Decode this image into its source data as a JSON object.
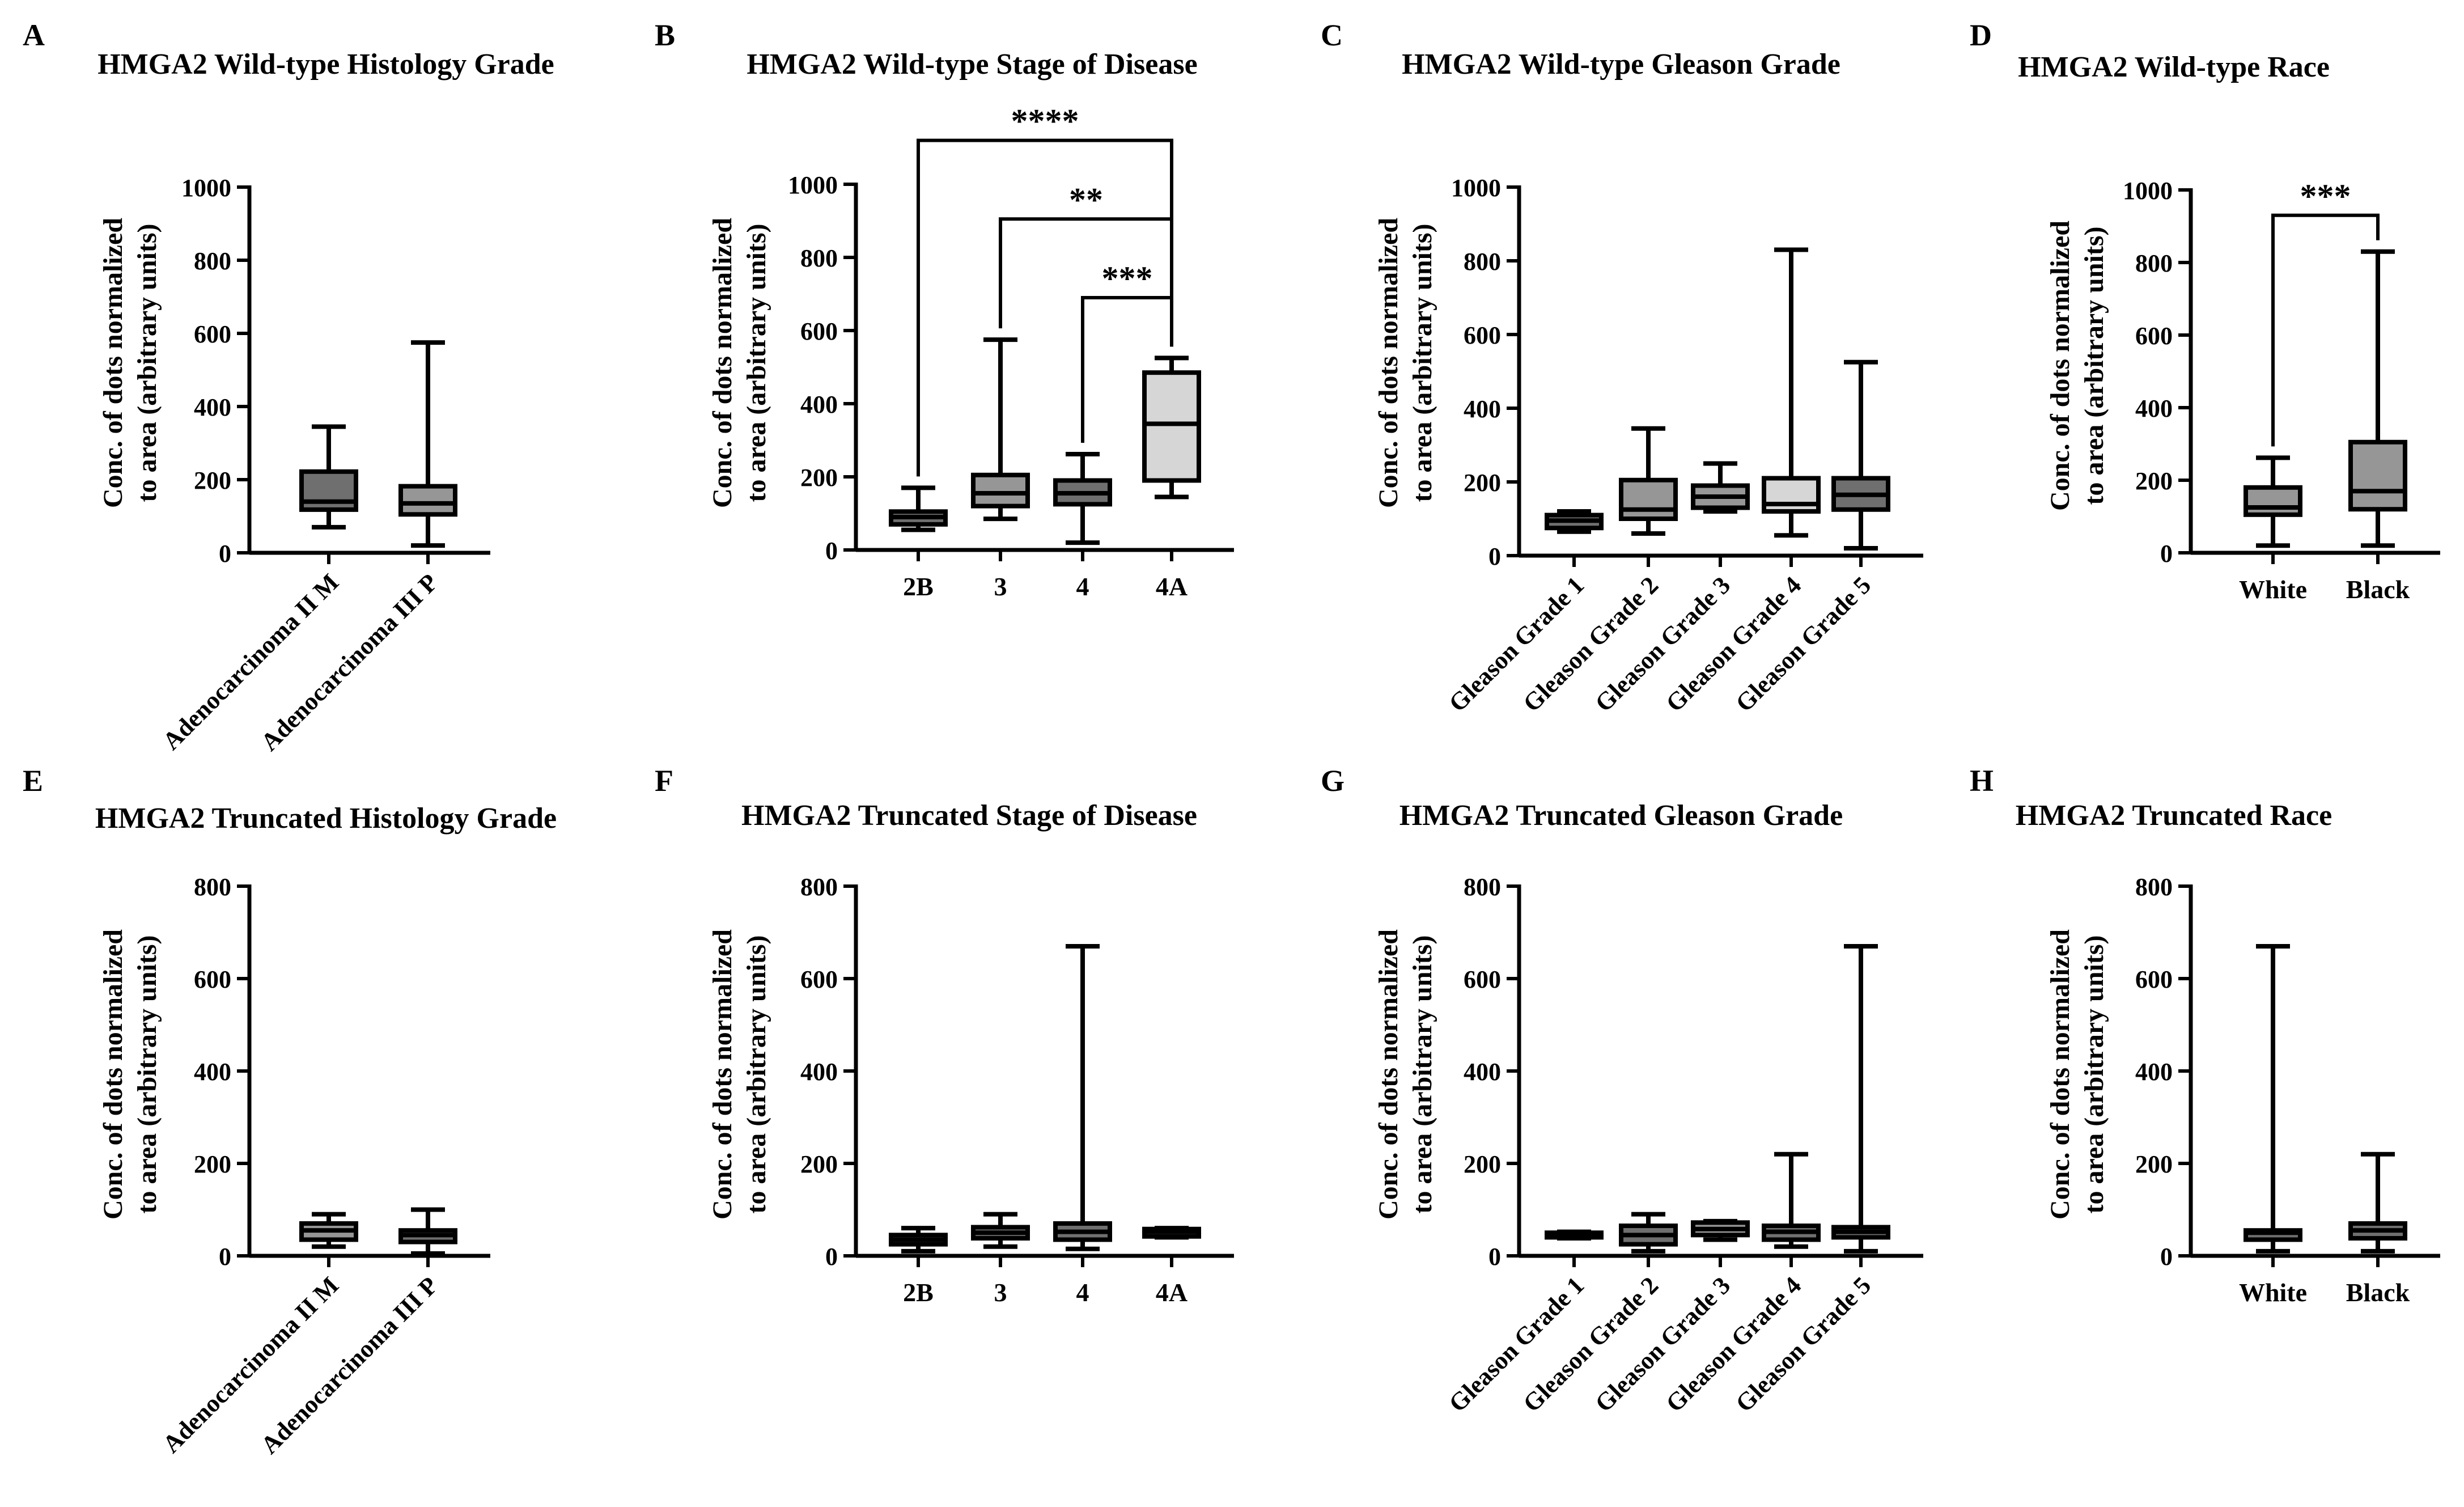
{
  "colors": {
    "dark": "#6f6f6f",
    "mid": "#969696",
    "light": "#d6d6d6"
  },
  "chart_data": [
    {
      "panel": "A",
      "type": "box",
      "title": "HMGA2 Wild-type Histology Grade",
      "ylabel": [
        "Conc. of dots normalized",
        "to area (arbitrary units)"
      ],
      "ylim": [
        0,
        1000
      ],
      "yticks": [
        "0",
        "200",
        "400",
        "600",
        "800",
        "1000"
      ],
      "categories": [
        "Adenocarcinoma II M",
        "Adenocarcinoma III P"
      ],
      "boxes": [
        {
          "min": 70,
          "q1": 118,
          "median": 140,
          "q3": 222,
          "max": 345,
          "fill": "dark"
        },
        {
          "min": 20,
          "q1": 105,
          "median": 135,
          "q3": 182,
          "max": 575,
          "fill": "mid"
        }
      ],
      "significance": []
    },
    {
      "panel": "B",
      "type": "box",
      "title": "HMGA2 Wild-type Stage of Disease",
      "ylabel": [
        "Conc. of dots normalized",
        "to area (arbitrary units)"
      ],
      "ylim": [
        0,
        1000
      ],
      "yticks": [
        "0",
        "200",
        "400",
        "600",
        "800",
        "1000"
      ],
      "categories": [
        "2B",
        "3",
        "4",
        "4A"
      ],
      "boxes": [
        {
          "min": 55,
          "q1": 70,
          "median": 90,
          "q3": 105,
          "max": 170,
          "fill": "dark"
        },
        {
          "min": 85,
          "q1": 120,
          "median": 155,
          "q3": 205,
          "max": 575,
          "fill": "mid"
        },
        {
          "min": 20,
          "q1": 125,
          "median": 155,
          "q3": 190,
          "max": 262,
          "fill": "dark"
        },
        {
          "min": 145,
          "q1": 190,
          "median": 345,
          "q3": 485,
          "max": 525,
          "fill": "light"
        }
      ],
      "significance": [
        {
          "from": 2,
          "to": 3,
          "label": "***",
          "y": 690
        },
        {
          "from": 1,
          "to": 3,
          "label": "**",
          "y": 905
        },
        {
          "from": 0,
          "to": 3,
          "label": "****",
          "y": 1120
        }
      ]
    },
    {
      "panel": "C",
      "type": "box",
      "title": "HMGA2 Wild-type Gleason Grade",
      "ylabel": [
        "Conc. of dots normalized",
        "to area (arbitrary units)"
      ],
      "ylim": [
        0,
        1000
      ],
      "yticks": [
        "0",
        "200",
        "400",
        "600",
        "800",
        "1000"
      ],
      "categories": [
        "Gleason Grade 1",
        "Gleason Grade 2",
        "Gleason Grade 3",
        "Gleason Grade 4",
        "Gleason Grade 5"
      ],
      "boxes": [
        {
          "min": 65,
          "q1": 75,
          "median": 95,
          "q3": 110,
          "max": 120,
          "fill": "dark"
        },
        {
          "min": 60,
          "q1": 100,
          "median": 125,
          "q3": 205,
          "max": 345,
          "fill": "mid"
        },
        {
          "min": 120,
          "q1": 130,
          "median": 160,
          "q3": 190,
          "max": 250,
          "fill": "mid"
        },
        {
          "min": 55,
          "q1": 120,
          "median": 140,
          "q3": 210,
          "max": 830,
          "fill": "light"
        },
        {
          "min": 20,
          "q1": 125,
          "median": 165,
          "q3": 210,
          "max": 525,
          "fill": "dark"
        }
      ],
      "significance": []
    },
    {
      "panel": "D",
      "type": "box",
      "title": "HMGA2 Wild-type Race",
      "ylabel": [
        "Conc. of dots normalized",
        "to area (arbitrary units)"
      ],
      "ylim": [
        0,
        1000
      ],
      "yticks": [
        "0",
        "200",
        "400",
        "600",
        "800",
        "1000"
      ],
      "categories": [
        "White",
        "Black"
      ],
      "boxes": [
        {
          "min": 20,
          "q1": 105,
          "median": 125,
          "q3": 180,
          "max": 262,
          "fill": "mid"
        },
        {
          "min": 20,
          "q1": 120,
          "median": 170,
          "q3": 305,
          "max": 830,
          "fill": "mid"
        }
      ],
      "significance": [
        {
          "from": 0,
          "to": 1,
          "label": "***",
          "y": 930
        }
      ]
    },
    {
      "panel": "E",
      "type": "box",
      "title": "HMGA2 Truncated Histology Grade",
      "ylabel": [
        "Conc. of dots normalized",
        "to area (arbitrary units)"
      ],
      "ylim": [
        0,
        800
      ],
      "yticks": [
        "0",
        "200",
        "400",
        "600",
        "800"
      ],
      "categories": [
        "Adenocarcinoma II M",
        "Adenocarcinoma III P"
      ],
      "boxes": [
        {
          "min": 20,
          "q1": 35,
          "median": 55,
          "q3": 70,
          "max": 90,
          "fill": "mid"
        },
        {
          "min": 5,
          "q1": 30,
          "median": 45,
          "q3": 55,
          "max": 100,
          "fill": "dark"
        }
      ],
      "significance": []
    },
    {
      "panel": "F",
      "type": "box",
      "title": "HMGA2 Truncated Stage of Disease",
      "ylabel": [
        "Conc. of dots normalized",
        "to area (arbitrary units)"
      ],
      "ylim": [
        0,
        800
      ],
      "yticks": [
        "0",
        "200",
        "400",
        "600",
        "800"
      ],
      "categories": [
        "2B",
        "3",
        "4",
        "4A"
      ],
      "boxes": [
        {
          "min": 10,
          "q1": 25,
          "median": 35,
          "q3": 45,
          "max": 60,
          "fill": "dark"
        },
        {
          "min": 20,
          "q1": 38,
          "median": 50,
          "q3": 62,
          "max": 90,
          "fill": "dark"
        },
        {
          "min": 15,
          "q1": 35,
          "median": 52,
          "q3": 70,
          "max": 670,
          "fill": "dark"
        },
        {
          "min": 40,
          "q1": 42,
          "median": 52,
          "q3": 58,
          "max": 60,
          "fill": "dark"
        }
      ],
      "significance": []
    },
    {
      "panel": "G",
      "type": "box",
      "title": "HMGA2 Truncated Gleason Grade",
      "ylabel": [
        "Conc. of dots normalized",
        "to area (arbitrary units)"
      ],
      "ylim": [
        0,
        800
      ],
      "yticks": [
        "0",
        "200",
        "400",
        "600",
        "800"
      ],
      "categories": [
        "Gleason Grade 1",
        "Gleason Grade 2",
        "Gleason Grade 3",
        "Gleason Grade 4",
        "Gleason Grade 5"
      ],
      "boxes": [
        {
          "min": 38,
          "q1": 40,
          "median": 46,
          "q3": 50,
          "max": 52,
          "fill": "dark"
        },
        {
          "min": 10,
          "q1": 25,
          "median": 45,
          "q3": 65,
          "max": 90,
          "fill": "dark"
        },
        {
          "min": 35,
          "q1": 45,
          "median": 58,
          "q3": 72,
          "max": 75,
          "fill": "mid"
        },
        {
          "min": 20,
          "q1": 35,
          "median": 52,
          "q3": 65,
          "max": 220,
          "fill": "dark"
        },
        {
          "min": 10,
          "q1": 40,
          "median": 52,
          "q3": 62,
          "max": 670,
          "fill": "dark"
        }
      ],
      "significance": []
    },
    {
      "panel": "H",
      "type": "box",
      "title": "HMGA2 Truncated Race",
      "ylabel": [
        "Conc. of dots normalized",
        "to area (arbitrary units)"
      ],
      "ylim": [
        0,
        800
      ],
      "yticks": [
        "0",
        "200",
        "400",
        "600",
        "800"
      ],
      "categories": [
        "White",
        "Black"
      ],
      "boxes": [
        {
          "min": 10,
          "q1": 35,
          "median": 50,
          "q3": 55,
          "max": 670,
          "fill": "dark"
        },
        {
          "min": 10,
          "q1": 38,
          "median": 55,
          "q3": 70,
          "max": 220,
          "fill": "dark"
        }
      ],
      "significance": []
    }
  ]
}
